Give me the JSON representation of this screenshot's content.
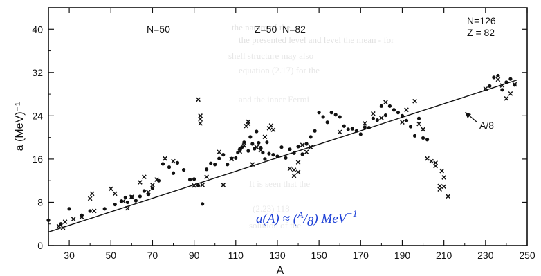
{
  "chart_data": {
    "type": "scatter",
    "xlabel": "A",
    "ylabel": "a (MeV)⁻¹",
    "xlim": [
      20,
      250
    ],
    "ylim": [
      0,
      44
    ],
    "xticks": [
      30,
      50,
      70,
      90,
      110,
      130,
      150,
      170,
      190,
      210,
      230,
      250
    ],
    "yticks": [
      0,
      8,
      16,
      24,
      32,
      40
    ],
    "xtick_labels": [
      "30",
      "50",
      "70",
      "90",
      "110",
      "130",
      "150",
      "170",
      "190",
      "210",
      "230",
      "250"
    ],
    "ytick_labels": [
      "0",
      "8",
      "16",
      "24",
      "32",
      "40"
    ],
    "grid": false,
    "annotations": {
      "n50": "N=50",
      "z50n82": "Z=50  N=82",
      "n126": "N=126",
      "z82": "Z = 82",
      "line_label": "A/8"
    },
    "formula": {
      "lhs": "a(A) ≈ (",
      "numerator": "A",
      "slash": "/",
      "denominator": "8",
      "rhs": ") MeV",
      "exponent": "−1"
    },
    "series": [
      {
        "name": "A/8",
        "kind": "line",
        "x": [
          20,
          245
        ],
        "y": [
          2.5,
          30.6
        ]
      },
      {
        "kind": "circle",
        "x": [
          20,
          26,
          30,
          36,
          40,
          47,
          52,
          55,
          57,
          58,
          60,
          62,
          64,
          66,
          68,
          70,
          73,
          75,
          78,
          80,
          82,
          85,
          88,
          90,
          92,
          94,
          96,
          98,
          100,
          102,
          104,
          106,
          108,
          110,
          111,
          112,
          113,
          114,
          116,
          117,
          118,
          119,
          120,
          121,
          122,
          123,
          124,
          125,
          126,
          128,
          130,
          132,
          134,
          136,
          138,
          140,
          142,
          144,
          146,
          148,
          150,
          152,
          154,
          156,
          158,
          160,
          162,
          164,
          166,
          168,
          170,
          172,
          174,
          176,
          178,
          180,
          182,
          184,
          186,
          188,
          190,
          192,
          194,
          196,
          198,
          200,
          202,
          232,
          234,
          236,
          238,
          240,
          242,
          244
        ],
        "y": [
          4.7,
          4.0,
          6.8,
          5.6,
          6.4,
          6.8,
          7.6,
          8.2,
          8.9,
          8.0,
          9.0,
          8.3,
          9.1,
          10.1,
          9.4,
          10.6,
          12.0,
          15.1,
          14.5,
          13.4,
          15.3,
          14.0,
          12.2,
          12.3,
          11.1,
          7.7,
          14.1,
          15.2,
          15.0,
          16.1,
          16.8,
          15.0,
          16.1,
          16.2,
          17.2,
          17.9,
          18.2,
          19.1,
          17.5,
          20.1,
          18.8,
          17.9,
          21.1,
          19.0,
          18.1,
          17.2,
          16.0,
          19.1,
          17.0,
          16.8,
          16.5,
          18.2,
          16.2,
          17.8,
          17.1,
          18.3,
          16.9,
          18.8,
          20.1,
          21.2,
          24.6,
          23.8,
          22.8,
          24.6,
          24.2,
          23.8,
          22.1,
          21.5,
          21.6,
          21.2,
          20.6,
          21.9,
          21.8,
          23.5,
          23.2,
          25.8,
          24.1,
          25.8,
          25.1,
          24.6,
          24.0,
          23.1,
          22.0,
          20.3,
          23.5,
          19.9,
          19.6,
          29.5,
          31.1,
          31.4,
          28.8,
          30.2,
          30.8,
          29.7
        ]
      },
      {
        "kind": "cross",
        "x": [
          25,
          27,
          28,
          32,
          36,
          40,
          41,
          42,
          50,
          52,
          56,
          58,
          60,
          64,
          66,
          68,
          70,
          72,
          76,
          80,
          90,
          92,
          93,
          93,
          93,
          94,
          96,
          102,
          104,
          108,
          112,
          114,
          115,
          116,
          116,
          118,
          120,
          122,
          124,
          126,
          127,
          128,
          136,
          138,
          138,
          140,
          140,
          142,
          144,
          146,
          160,
          172,
          176,
          180,
          182,
          190,
          192,
          196,
          198,
          200,
          202,
          204,
          206,
          206,
          208,
          208,
          209,
          210,
          210,
          212,
          230,
          236,
          238,
          240,
          242,
          244
        ],
        "y": [
          3.6,
          3.3,
          4.4,
          4.9,
          5.3,
          8.7,
          9.6,
          6.4,
          10.5,
          9.6,
          8.2,
          6.9,
          9.0,
          11.7,
          12.7,
          9.9,
          11.2,
          12.2,
          16.1,
          15.6,
          11.1,
          27.0,
          24.0,
          23.4,
          22.6,
          11.2,
          12.7,
          17.3,
          11.2,
          16.0,
          17.4,
          18.5,
          22.1,
          22.5,
          22.9,
          15.0,
          18.2,
          17.6,
          20.1,
          21.7,
          22.2,
          21.4,
          14.2,
          14.0,
          12.9,
          13.6,
          15.4,
          18.6,
          17.3,
          18.2,
          21.0,
          22.6,
          24.4,
          23.6,
          26.5,
          22.8,
          25.1,
          26.7,
          22.5,
          21.5,
          16.1,
          15.6,
          15.3,
          14.7,
          11.0,
          10.4,
          13.8,
          10.9,
          12.6,
          9.1,
          29.0,
          30.7,
          29.6,
          27.2,
          28.1,
          29.8
        ]
      }
    ]
  }
}
